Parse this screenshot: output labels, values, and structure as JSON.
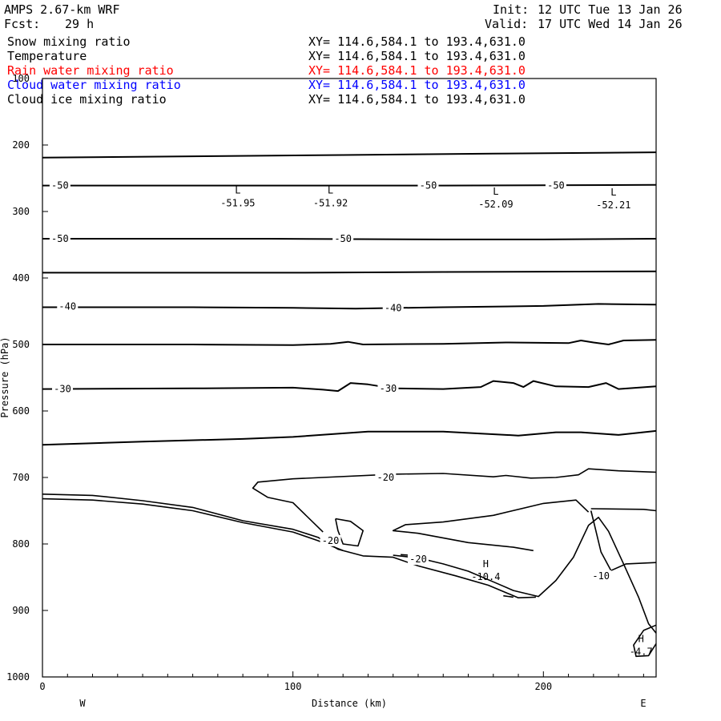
{
  "header": {
    "model": "AMPS 2.67-km WRF",
    "fcst_label": "Fcst:",
    "fcst_value": "29 h",
    "init_label": "Init:",
    "init_value": "12 UTC Tue 13 Jan 26",
    "valid_label": "Valid:",
    "valid_value": "17 UTC Wed 14 Jan 26"
  },
  "fields": [
    {
      "name": "Snow mixing ratio",
      "xy": "XY= 114.6,584.1 to 193.4,631.0",
      "color": "#000000"
    },
    {
      "name": "Temperature",
      "xy": "XY= 114.6,584.1 to 193.4,631.0",
      "color": "#000000"
    },
    {
      "name": "Rain water mixing ratio",
      "xy": "XY= 114.6,584.1 to 193.4,631.0",
      "color": "#ff0000"
    },
    {
      "name": "Cloud water mixing ratio",
      "xy": "XY= 114.6,584.1 to 193.4,631.0",
      "color": "#0000ff"
    },
    {
      "name": "Cloud ice mixing ratio",
      "xy": "XY= 114.6,584.1 to 193.4,631.0",
      "color": "#000000"
    }
  ],
  "chart_data": {
    "type": "line",
    "title": "",
    "xlabel": "Distance (km)",
    "ylabel": "Pressure (hPa)",
    "xlim": [
      0,
      245
    ],
    "ylim": [
      1000,
      100
    ],
    "x_ticks": [
      0,
      100,
      200
    ],
    "y_ticks": [
      100,
      200,
      300,
      400,
      500,
      600,
      700,
      800,
      900,
      1000
    ],
    "x_end_labels": {
      "left": "W",
      "right": "E"
    },
    "series": [
      {
        "values": [
          [
            0,
            219
          ],
          [
            60,
            217
          ],
          [
            120,
            215
          ],
          [
            180,
            213
          ],
          [
            245,
            211
          ]
        ]
      },
      {
        "values": [
          [
            0,
            261
          ],
          [
            80,
            261
          ],
          [
            160,
            261
          ],
          [
            245,
            260
          ]
        ]
      },
      {
        "values": [
          [
            0,
            341
          ],
          [
            90,
            341
          ],
          [
            160,
            342
          ],
          [
            200,
            342
          ],
          [
            245,
            341
          ]
        ]
      },
      {
        "values": [
          [
            0,
            392
          ],
          [
            100,
            392
          ],
          [
            160,
            391
          ],
          [
            245,
            390
          ]
        ]
      },
      {
        "values": [
          [
            0,
            444
          ],
          [
            60,
            444
          ],
          [
            100,
            445
          ],
          [
            125,
            446
          ],
          [
            160,
            444
          ],
          [
            200,
            442
          ],
          [
            222,
            439
          ],
          [
            245,
            440
          ]
        ]
      },
      {
        "values": [
          [
            0,
            500
          ],
          [
            60,
            500
          ],
          [
            100,
            501
          ],
          [
            115,
            499
          ],
          [
            122,
            496
          ],
          [
            128,
            500
          ],
          [
            160,
            499
          ],
          [
            185,
            497
          ],
          [
            210,
            498
          ],
          [
            215,
            494
          ],
          [
            220,
            497
          ],
          [
            226,
            500
          ],
          [
            232,
            494
          ],
          [
            245,
            493
          ]
        ]
      },
      {
        "values": [
          [
            0,
            567
          ],
          [
            60,
            566
          ],
          [
            100,
            565
          ],
          [
            112,
            568
          ],
          [
            118,
            570
          ],
          [
            123,
            558
          ],
          [
            130,
            560
          ],
          [
            140,
            566
          ],
          [
            160,
            567
          ],
          [
            175,
            564
          ],
          [
            180,
            555
          ],
          [
            188,
            558
          ],
          [
            192,
            564
          ],
          [
            196,
            555
          ],
          [
            205,
            563
          ],
          [
            218,
            564
          ],
          [
            225,
            558
          ],
          [
            230,
            567
          ],
          [
            245,
            563
          ]
        ]
      },
      {
        "values": [
          [
            0,
            651
          ],
          [
            40,
            646
          ],
          [
            80,
            642
          ],
          [
            100,
            639
          ],
          [
            130,
            631
          ],
          [
            160,
            631
          ],
          [
            190,
            637
          ],
          [
            205,
            632
          ],
          [
            215,
            632
          ],
          [
            230,
            636
          ],
          [
            245,
            630
          ]
        ]
      },
      {
        "values": [
          [
            245,
            692
          ],
          [
            230,
            690
          ],
          [
            218,
            687
          ],
          [
            214,
            696
          ],
          [
            205,
            700
          ],
          [
            195,
            701
          ],
          [
            185,
            697
          ],
          [
            180,
            699
          ],
          [
            160,
            694
          ],
          [
            140,
            695
          ],
          [
            100,
            702
          ],
          [
            86,
            707
          ],
          [
            84,
            716
          ],
          [
            90,
            730
          ],
          [
            100,
            738
          ],
          [
            112,
            782
          ]
        ]
      },
      {
        "values": [
          [
            0,
            725
          ],
          [
            20,
            727
          ],
          [
            40,
            735
          ],
          [
            60,
            745
          ],
          [
            80,
            765
          ],
          [
            100,
            778
          ],
          [
            110,
            790
          ],
          [
            118,
            808
          ],
          [
            128,
            818
          ],
          [
            140,
            820
          ],
          [
            150,
            833
          ],
          [
            165,
            848
          ],
          [
            178,
            862
          ],
          [
            190,
            881
          ],
          [
            197,
            880
          ]
        ]
      },
      {
        "values": [
          [
            0,
            732
          ],
          [
            20,
            734
          ],
          [
            40,
            740
          ],
          [
            60,
            750
          ],
          [
            80,
            768
          ],
          [
            100,
            782
          ],
          [
            110,
            795
          ],
          [
            120,
            810
          ]
        ]
      },
      {
        "values": [
          [
            117,
            762
          ],
          [
            123,
            766
          ],
          [
            128,
            780
          ],
          [
            126,
            803
          ],
          [
            120,
            800
          ],
          [
            118,
            780
          ],
          [
            117,
            762
          ]
        ]
      },
      {
        "values": [
          [
            140,
            817
          ],
          [
            150,
            821
          ],
          [
            160,
            830
          ],
          [
            170,
            841
          ],
          [
            180,
            857
          ],
          [
            188,
            870
          ],
          [
            198,
            879
          ],
          [
            205,
            855
          ],
          [
            212,
            820
          ],
          [
            218,
            772
          ],
          [
            222,
            760
          ],
          [
            226,
            781
          ],
          [
            232,
            830
          ],
          [
            238,
            880
          ],
          [
            242,
            920
          ],
          [
            245,
            934
          ]
        ]
      },
      {
        "values": [
          [
            196,
            810
          ],
          [
            188,
            805
          ],
          [
            170,
            798
          ],
          [
            150,
            784
          ],
          [
            140,
            780
          ],
          [
            145,
            771
          ],
          [
            160,
            767
          ],
          [
            180,
            757
          ],
          [
            200,
            739
          ],
          [
            213,
            734
          ],
          [
            218,
            752
          ]
        ]
      },
      {
        "values": [
          [
            219,
            747
          ],
          [
            240,
            748
          ],
          [
            245,
            750
          ]
        ]
      },
      {
        "values": [
          [
            219,
            750
          ],
          [
            220,
            765
          ],
          [
            223,
            812
          ],
          [
            227,
            840
          ],
          [
            233,
            830
          ],
          [
            245,
            828
          ]
        ]
      },
      {
        "values": [
          [
            143,
            816
          ],
          [
            150,
            818
          ]
        ]
      },
      {
        "values": [
          [
            184,
            878
          ],
          [
            188,
            880
          ]
        ]
      },
      {
        "values": [
          [
            245,
            922
          ],
          [
            240,
            930
          ],
          [
            236,
            952
          ],
          [
            237,
            969
          ],
          [
            242,
            968
          ],
          [
            245,
            950
          ]
        ]
      }
    ],
    "contour_labels": [
      {
        "x": 7,
        "p": 261,
        "text": "-50"
      },
      {
        "x": 154,
        "p": 261,
        "text": "-50"
      },
      {
        "x": 205,
        "p": 261,
        "text": "-50"
      },
      {
        "x": 7,
        "p": 341,
        "text": "-50"
      },
      {
        "x": 120,
        "p": 341,
        "text": "-50"
      },
      {
        "x": 10,
        "p": 443,
        "text": "-40"
      },
      {
        "x": 140,
        "p": 445,
        "text": "-40"
      },
      {
        "x": 8,
        "p": 567,
        "text": "-30"
      },
      {
        "x": 138,
        "p": 566,
        "text": "-30"
      },
      {
        "x": 137,
        "p": 700,
        "text": "-20"
      },
      {
        "x": 115,
        "p": 795,
        "text": "-20"
      },
      {
        "x": 150,
        "p": 823,
        "text": "-20"
      },
      {
        "x": 223,
        "p": 848,
        "text": "-10"
      }
    ],
    "extrema": [
      {
        "type": "L",
        "x": 78,
        "p": 280,
        "value": "-51.95"
      },
      {
        "type": "L",
        "x": 115,
        "p": 280,
        "value": "-51.92"
      },
      {
        "type": "L",
        "x": 181,
        "p": 282,
        "value": "-52.09"
      },
      {
        "type": "L",
        "x": 228,
        "p": 283,
        "value": "-52.21"
      },
      {
        "type": "H",
        "x": 177,
        "p": 842,
        "value": "-10.4"
      },
      {
        "type": "H",
        "x": 239,
        "p": 955,
        "value": "-4.7"
      }
    ]
  }
}
